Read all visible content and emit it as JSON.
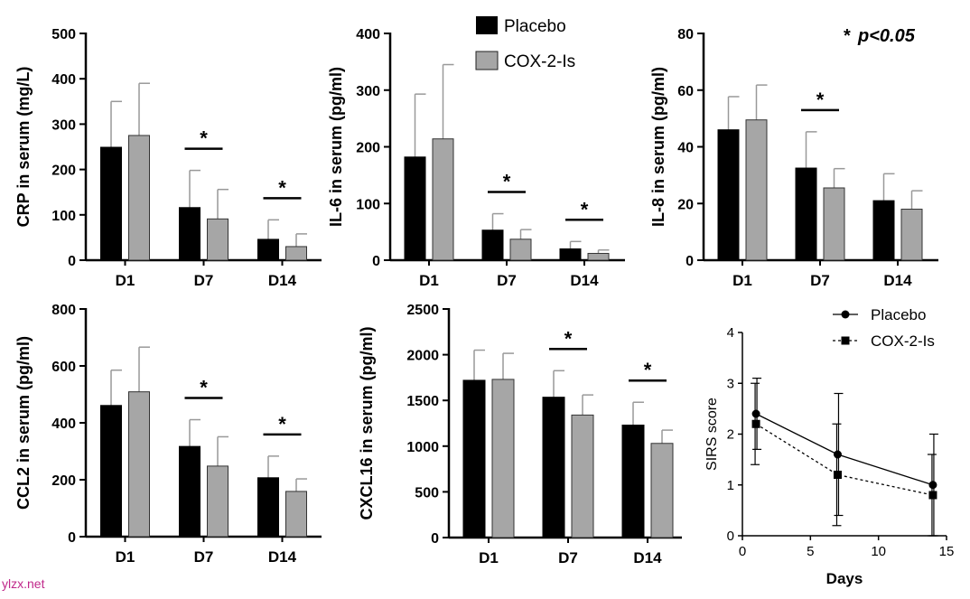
{
  "legend": {
    "placebo": "Placebo",
    "cox": "COX-2-Is"
  },
  "significance_note": {
    "star": "*",
    "text": "p<0.05"
  },
  "watermark": "ylzx.net",
  "colors": {
    "placebo": "#000000",
    "cox": "#a6a6a6",
    "error": "#999999"
  },
  "chart_data": [
    {
      "id": "crp",
      "type": "bar",
      "ylabel": "CRP in serum (mg/L)",
      "categories": [
        "D1",
        "D7",
        "D14"
      ],
      "ylim": [
        0,
        500
      ],
      "yticks": [
        0,
        100,
        200,
        300,
        400,
        500
      ],
      "series": [
        {
          "name": "Placebo",
          "values": [
            249,
            116,
            46
          ],
          "errors": [
            101,
            82,
            43
          ]
        },
        {
          "name": "COX-2-Is",
          "values": [
            275,
            91,
            30
          ],
          "errors": [
            115,
            65,
            28
          ]
        }
      ],
      "significance": [
        false,
        true,
        true
      ]
    },
    {
      "id": "il6",
      "type": "bar",
      "ylabel": "IL-6 in serum (pg/ml)",
      "categories": [
        "D1",
        "D7",
        "D14"
      ],
      "ylim": [
        0,
        400
      ],
      "yticks": [
        0,
        100,
        200,
        300,
        400
      ],
      "series": [
        {
          "name": "Placebo",
          "values": [
            182,
            53,
            20
          ],
          "errors": [
            111,
            29,
            13
          ]
        },
        {
          "name": "COX-2-Is",
          "values": [
            214,
            37,
            12
          ],
          "errors": [
            131,
            17,
            6
          ]
        }
      ],
      "significance": [
        false,
        true,
        true
      ]
    },
    {
      "id": "il8",
      "type": "bar",
      "ylabel": "IL-8 in serum (pg/ml)",
      "categories": [
        "D1",
        "D7",
        "D14"
      ],
      "ylim": [
        0,
        80
      ],
      "yticks": [
        0,
        20,
        40,
        60,
        80
      ],
      "series": [
        {
          "name": "Placebo",
          "values": [
            46,
            32.5,
            21
          ],
          "errors": [
            11.7,
            12.8,
            9.5
          ]
        },
        {
          "name": "COX-2-Is",
          "values": [
            49.5,
            25.5,
            18
          ],
          "errors": [
            12.3,
            6.8,
            6.5
          ]
        }
      ],
      "significance": [
        false,
        true,
        false
      ]
    },
    {
      "id": "ccl2",
      "type": "bar",
      "ylabel": "CCL2 in serum (pg/ml)",
      "categories": [
        "D1",
        "D7",
        "D14"
      ],
      "ylim": [
        0,
        800
      ],
      "yticks": [
        0,
        200,
        400,
        600,
        800
      ],
      "series": [
        {
          "name": "Placebo",
          "values": [
            461,
            317,
            207
          ],
          "errors": [
            124,
            94,
            76
          ]
        },
        {
          "name": "COX-2-Is",
          "values": [
            509,
            248,
            159
          ],
          "errors": [
            157,
            103,
            44
          ]
        }
      ],
      "significance": [
        false,
        true,
        true
      ]
    },
    {
      "id": "cxcl16",
      "type": "bar",
      "ylabel": "CXCL16 in serum (pg/ml)",
      "categories": [
        "D1",
        "D7",
        "D14"
      ],
      "ylim": [
        0,
        2500
      ],
      "yticks": [
        0,
        500,
        1000,
        1500,
        2000,
        2500
      ],
      "series": [
        {
          "name": "Placebo",
          "values": [
            1720,
            1535,
            1230
          ],
          "errors": [
            330,
            290,
            250
          ]
        },
        {
          "name": "COX-2-Is",
          "values": [
            1730,
            1340,
            1030
          ],
          "errors": [
            285,
            220,
            145
          ]
        }
      ],
      "significance": [
        false,
        true,
        true
      ]
    },
    {
      "id": "sirs",
      "type": "line",
      "xlabel": "Days",
      "ylabel": "SIRS score",
      "xlim": [
        0,
        15
      ],
      "xticks": [
        0,
        5,
        10,
        15
      ],
      "ylim": [
        0,
        4
      ],
      "yticks": [
        0,
        1,
        2,
        3,
        4
      ],
      "x": [
        1,
        7,
        14
      ],
      "series": [
        {
          "name": "Placebo",
          "values": [
            2.4,
            1.6,
            1.0
          ],
          "errors": [
            0.7,
            1.2,
            1.0
          ]
        },
        {
          "name": "COX-2-Is",
          "values": [
            2.2,
            1.2,
            0.8
          ],
          "errors": [
            0.8,
            1.0,
            0.8
          ]
        }
      ]
    }
  ]
}
